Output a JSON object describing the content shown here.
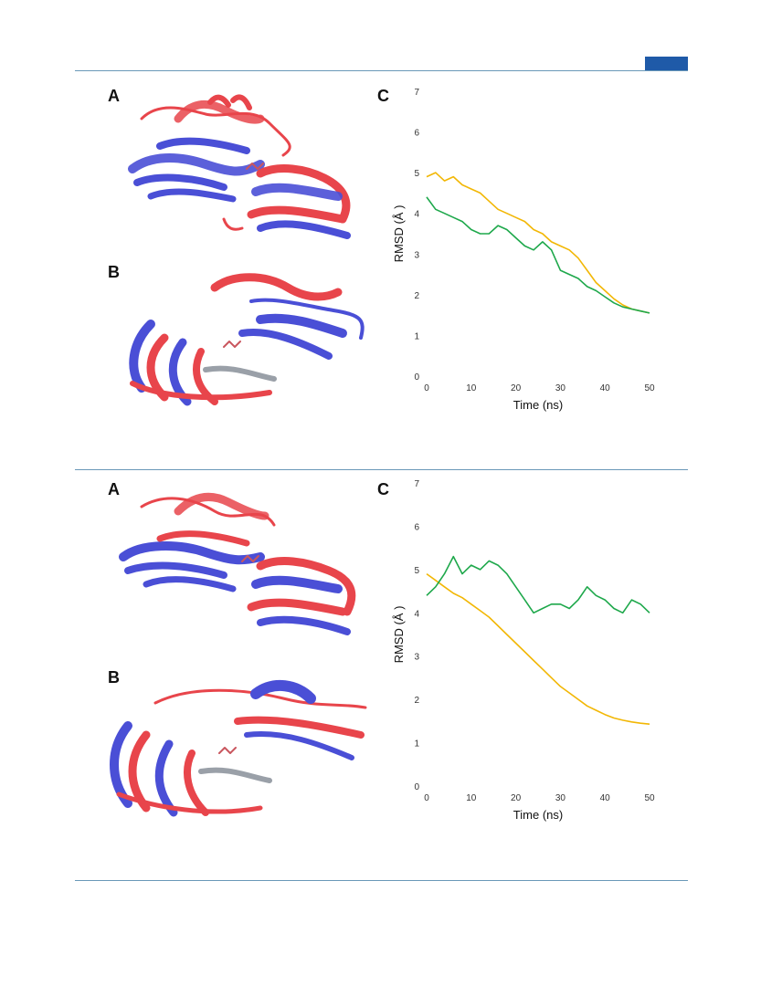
{
  "figure_1": {
    "panel_a_label": "A",
    "panel_b_label": "B",
    "panel_c_label": "C",
    "colors": {
      "structure_1": "#e8454b",
      "structure_2": "#4a4fd6"
    }
  },
  "figure_2": {
    "panel_a_label": "A",
    "panel_b_label": "B",
    "panel_c_label": "C",
    "colors": {
      "structure_1": "#e8454b",
      "structure_2": "#4a4fd6"
    }
  },
  "chart_data": [
    {
      "type": "line",
      "xlabel": "Time (ns)",
      "ylabel": "RMSD (Å )",
      "xlim": [
        0,
        50
      ],
      "ylim": [
        0,
        7
      ],
      "xticks": [
        "0",
        "10",
        "20",
        "30",
        "40",
        "50"
      ],
      "yticks": [
        "0",
        "1",
        "2",
        "3",
        "4",
        "5",
        "6",
        "7"
      ],
      "grid": false,
      "legend": "none",
      "series": [
        {
          "color": "#f2b705",
          "x": [
            0,
            2,
            4,
            6,
            8,
            10,
            12,
            14,
            16,
            18,
            20,
            22,
            24,
            26,
            28,
            30,
            32,
            34,
            36,
            38,
            40,
            42,
            44,
            46,
            48,
            50
          ],
          "y": [
            4.9,
            5.0,
            4.8,
            4.9,
            4.7,
            4.6,
            4.5,
            4.3,
            4.1,
            4.0,
            3.9,
            3.8,
            3.6,
            3.5,
            3.3,
            3.2,
            3.1,
            2.9,
            2.6,
            2.3,
            2.1,
            1.9,
            1.75,
            1.65,
            1.6,
            1.55
          ]
        },
        {
          "color": "#1ea84b",
          "x": [
            0,
            2,
            4,
            6,
            8,
            10,
            12,
            14,
            16,
            18,
            20,
            22,
            24,
            26,
            28,
            30,
            32,
            34,
            36,
            38,
            40,
            42,
            44,
            46,
            48,
            50
          ],
          "y": [
            4.4,
            4.1,
            4.0,
            3.9,
            3.8,
            3.6,
            3.5,
            3.5,
            3.7,
            3.6,
            3.4,
            3.2,
            3.1,
            3.3,
            3.1,
            2.6,
            2.5,
            2.4,
            2.2,
            2.1,
            1.95,
            1.8,
            1.7,
            1.65,
            1.6,
            1.55
          ]
        }
      ]
    },
    {
      "type": "line",
      "xlabel": "Time (ns)",
      "ylabel": "RMSD (Å )",
      "xlim": [
        0,
        50
      ],
      "ylim": [
        0,
        7
      ],
      "xticks": [
        "0",
        "10",
        "20",
        "30",
        "40",
        "50"
      ],
      "yticks": [
        "0",
        "1",
        "2",
        "3",
        "4",
        "5",
        "6",
        "7"
      ],
      "grid": false,
      "legend": "none",
      "series": [
        {
          "color": "#f2b705",
          "x": [
            0,
            2,
            4,
            6,
            8,
            10,
            12,
            14,
            16,
            18,
            20,
            22,
            24,
            26,
            28,
            30,
            32,
            34,
            36,
            38,
            40,
            42,
            44,
            46,
            48,
            50
          ],
          "y": [
            4.9,
            4.75,
            4.6,
            4.45,
            4.35,
            4.2,
            4.05,
            3.9,
            3.7,
            3.5,
            3.3,
            3.1,
            2.9,
            2.7,
            2.5,
            2.3,
            2.15,
            2.0,
            1.85,
            1.75,
            1.65,
            1.57,
            1.52,
            1.48,
            1.45,
            1.43
          ]
        },
        {
          "color": "#1ea84b",
          "x": [
            0,
            2,
            4,
            6,
            8,
            10,
            12,
            14,
            16,
            18,
            20,
            22,
            24,
            26,
            28,
            30,
            32,
            34,
            36,
            38,
            40,
            42,
            44,
            46,
            48,
            50
          ],
          "y": [
            4.4,
            4.6,
            4.9,
            5.3,
            4.9,
            5.1,
            5.0,
            5.2,
            5.1,
            4.9,
            4.6,
            4.3,
            4.0,
            4.1,
            4.2,
            4.2,
            4.1,
            4.3,
            4.6,
            4.4,
            4.3,
            4.1,
            4.0,
            4.3,
            4.2,
            4.0
          ]
        }
      ]
    }
  ]
}
